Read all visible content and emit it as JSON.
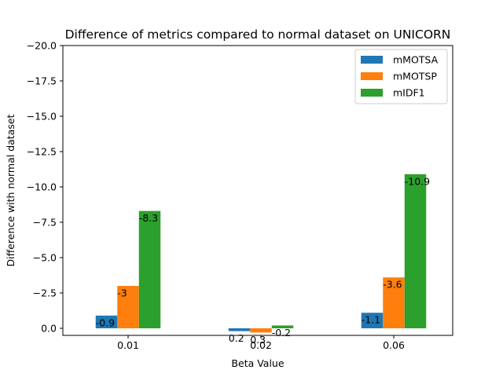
{
  "chart_data": {
    "type": "bar",
    "title": "Difference of metrics compared to normal dataset on UNICORN",
    "xlabel": "Beta Value",
    "ylabel": "Difference with normal dataset",
    "categories": [
      "0.01",
      "0.02",
      "0.06"
    ],
    "series": [
      {
        "name": "mMOTSA",
        "color": "#1f77b4",
        "values": [
          -0.9,
          0.2,
          -1.1
        ],
        "labels": [
          "-0.9",
          "0.2",
          "-1.1"
        ]
      },
      {
        "name": "mMOTSP",
        "color": "#ff7f0e",
        "values": [
          -3,
          0.3,
          -3.6
        ],
        "labels": [
          "-3",
          "0.3",
          "-3.6"
        ]
      },
      {
        "name": "mIDF1",
        "color": "#2ca02c",
        "values": [
          -8.3,
          -0.2,
          -10.9
        ],
        "labels": [
          "-8.3",
          "-0.2",
          "-10.9"
        ]
      }
    ],
    "ylim": [
      0.5,
      -20
    ],
    "yaxis_inverted": true,
    "yticks": [
      0,
      -2.5,
      -5,
      -7.5,
      -10,
      -12.5,
      -15,
      -17.5,
      -20
    ],
    "ytick_labels": [
      "0.0",
      "−2.5",
      "−5.0",
      "−7.5",
      "−10.0",
      "−12.5",
      "−15.0",
      "−17.5",
      "−20.0"
    ],
    "legend_position": "top-right",
    "grid": false
  }
}
